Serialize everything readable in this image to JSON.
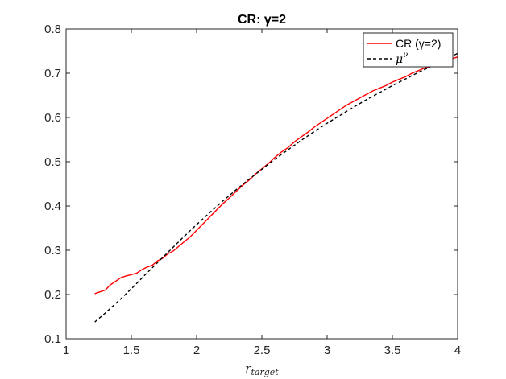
{
  "chart_data": {
    "type": "line",
    "title": "CR: γ=2",
    "xlabel": "r_target",
    "xlabel_main": "r",
    "xlabel_sub": "target",
    "ylabel": "",
    "xlim": [
      1,
      4
    ],
    "ylim": [
      0.1,
      0.8
    ],
    "xticks": [
      1,
      1.5,
      2,
      2.5,
      3,
      3.5,
      4
    ],
    "xtick_labels": [
      "1",
      "1.5",
      "2",
      "2.5",
      "3",
      "3.5",
      "4"
    ],
    "yticks": [
      0.1,
      0.2,
      0.3,
      0.4,
      0.5,
      0.6,
      0.7,
      0.8
    ],
    "ytick_labels": [
      "0.1",
      "0.2",
      "0.3",
      "0.4",
      "0.5",
      "0.6",
      "0.7",
      "0.8"
    ],
    "grid": false,
    "legend_position": "top-right",
    "series": [
      {
        "name": "CR (γ=2)",
        "color": "#ff0000",
        "line_style": "solid",
        "x": [
          1.22,
          1.26,
          1.3,
          1.34,
          1.38,
          1.42,
          1.46,
          1.5,
          1.54,
          1.58,
          1.62,
          1.66,
          1.7,
          1.74,
          1.78,
          1.82,
          1.86,
          1.9,
          1.95,
          2.0,
          2.05,
          2.1,
          2.15,
          2.2,
          2.25,
          2.3,
          2.35,
          2.4,
          2.45,
          2.5,
          2.55,
          2.6,
          2.65,
          2.7,
          2.75,
          2.8,
          2.85,
          2.9,
          2.95,
          3.0,
          3.05,
          3.1,
          3.15,
          3.2,
          3.25,
          3.3,
          3.35,
          3.4,
          3.45,
          3.5,
          3.55,
          3.6,
          3.65,
          3.7,
          3.75,
          3.8,
          3.85,
          3.9,
          3.95,
          4.0
        ],
        "y": [
          0.202,
          0.206,
          0.21,
          0.222,
          0.23,
          0.238,
          0.242,
          0.245,
          0.248,
          0.256,
          0.262,
          0.266,
          0.276,
          0.282,
          0.292,
          0.298,
          0.308,
          0.318,
          0.33,
          0.345,
          0.36,
          0.375,
          0.39,
          0.405,
          0.418,
          0.432,
          0.446,
          0.458,
          0.472,
          0.484,
          0.496,
          0.51,
          0.522,
          0.532,
          0.545,
          0.556,
          0.566,
          0.578,
          0.588,
          0.598,
          0.608,
          0.618,
          0.628,
          0.636,
          0.644,
          0.652,
          0.66,
          0.666,
          0.672,
          0.68,
          0.686,
          0.692,
          0.7,
          0.706,
          0.712,
          0.716,
          0.722,
          0.726,
          0.732,
          0.737
        ]
      },
      {
        "name": "μ^ν",
        "name_base": "μ",
        "name_sup": "ν",
        "color": "#000000",
        "line_style": "dashed",
        "x": [
          1.22,
          1.3,
          1.4,
          1.5,
          1.6,
          1.7,
          1.8,
          1.9,
          2.0,
          2.1,
          2.2,
          2.3,
          2.4,
          2.5,
          2.6,
          2.7,
          2.8,
          2.9,
          3.0,
          3.1,
          3.2,
          3.3,
          3.4,
          3.5,
          3.6,
          3.7,
          3.8,
          3.9,
          4.0
        ],
        "y": [
          0.138,
          0.158,
          0.185,
          0.213,
          0.243,
          0.272,
          0.301,
          0.33,
          0.358,
          0.385,
          0.411,
          0.436,
          0.46,
          0.483,
          0.506,
          0.527,
          0.548,
          0.568,
          0.587,
          0.605,
          0.623,
          0.64,
          0.656,
          0.672,
          0.687,
          0.702,
          0.716,
          0.73,
          0.745
        ]
      }
    ]
  }
}
